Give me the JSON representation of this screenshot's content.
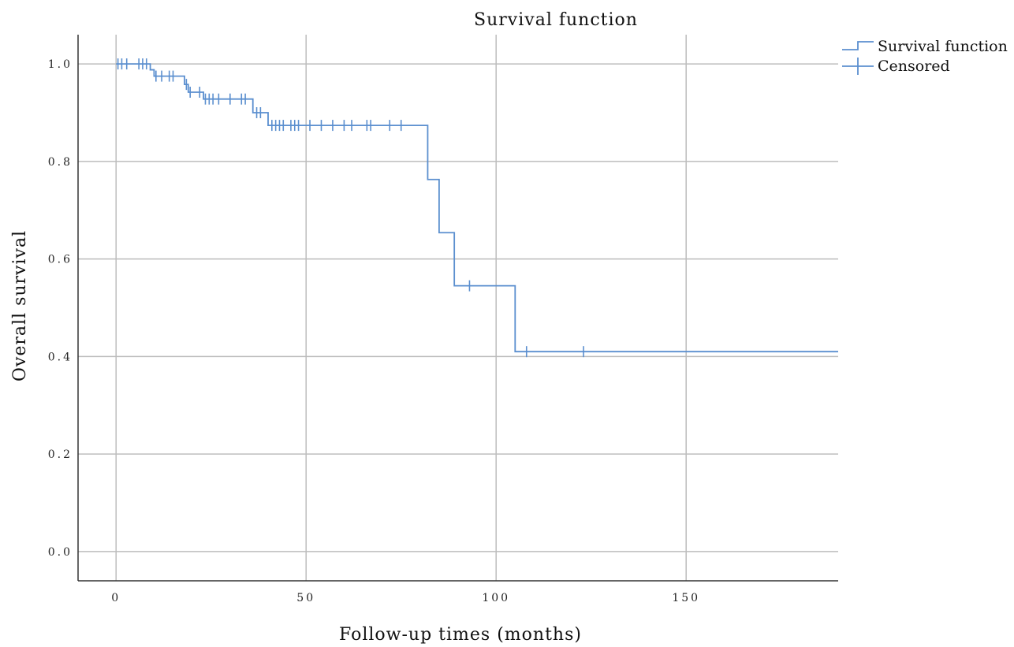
{
  "chart_data": {
    "type": "line",
    "title": "Survival function",
    "xlabel": "Follow-up times (months)",
    "ylabel": "Overall survival",
    "xlim": [
      -10,
      190
    ],
    "ylim": [
      -0.06,
      1.06
    ],
    "x_ticks": [
      0,
      50,
      100,
      150
    ],
    "x_tick_labels": [
      "0",
      "50",
      "100",
      "150"
    ],
    "y_ticks": [
      0.0,
      0.2,
      0.4,
      0.6,
      0.8,
      1.0
    ],
    "y_tick_labels": [
      "0.0",
      "0.2",
      "0.4",
      "0.6",
      "0.8",
      "1.0"
    ],
    "grid": true,
    "legend_position": "top-right",
    "legend": [
      "Survival function",
      "Censored"
    ],
    "line_color": "#5b8fcf",
    "grid_color": "#bdbdbd",
    "series": [
      {
        "name": "Survival function",
        "kind": "step",
        "x": [
          0,
          9,
          10,
          18,
          19,
          23,
          36,
          40,
          82,
          85,
          89,
          105,
          190
        ],
        "y": [
          1.0,
          0.988,
          0.975,
          0.958,
          0.942,
          0.928,
          0.9,
          0.874,
          0.763,
          0.654,
          0.545,
          0.41,
          0.41
        ]
      },
      {
        "name": "Censored",
        "kind": "censor-marks",
        "points": [
          [
            0.5,
            1.0
          ],
          [
            1.5,
            1.0
          ],
          [
            2.8,
            1.0
          ],
          [
            6,
            1.0
          ],
          [
            7,
            1.0
          ],
          [
            8,
            1.0
          ],
          [
            10.5,
            0.975
          ],
          [
            12,
            0.975
          ],
          [
            14,
            0.975
          ],
          [
            15,
            0.975
          ],
          [
            18.5,
            0.958
          ],
          [
            19.5,
            0.942
          ],
          [
            22,
            0.942
          ],
          [
            23.5,
            0.928
          ],
          [
            24.5,
            0.928
          ],
          [
            25.5,
            0.928
          ],
          [
            27,
            0.928
          ],
          [
            30,
            0.928
          ],
          [
            33,
            0.928
          ],
          [
            34,
            0.928
          ],
          [
            37,
            0.9
          ],
          [
            38,
            0.9
          ],
          [
            41,
            0.874
          ],
          [
            42,
            0.874
          ],
          [
            43,
            0.874
          ],
          [
            44,
            0.874
          ],
          [
            46,
            0.874
          ],
          [
            47,
            0.874
          ],
          [
            48,
            0.874
          ],
          [
            51,
            0.874
          ],
          [
            54,
            0.874
          ],
          [
            57,
            0.874
          ],
          [
            60,
            0.874
          ],
          [
            62,
            0.874
          ],
          [
            66,
            0.874
          ],
          [
            67,
            0.874
          ],
          [
            72,
            0.874
          ],
          [
            75,
            0.874
          ],
          [
            93,
            0.545
          ],
          [
            108,
            0.41
          ],
          [
            123,
            0.41
          ]
        ]
      }
    ]
  }
}
